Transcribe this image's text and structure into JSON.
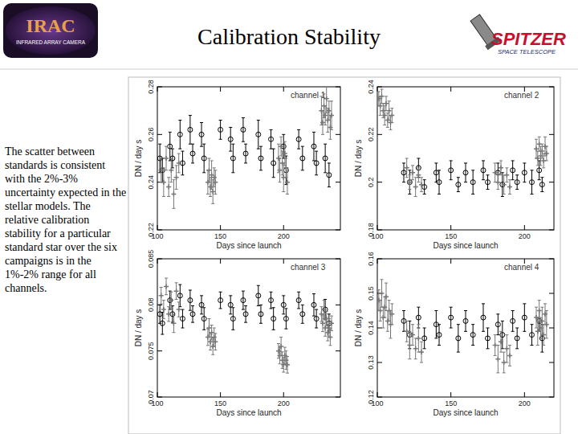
{
  "header": {
    "title": "Calibration Stability",
    "logo_left": {
      "text": "IRAC",
      "subtext": "INFRARED ARRAY CAMERA"
    },
    "logo_right": {
      "text": "SPITZER",
      "subtext": "SPACE TELESCOPE"
    }
  },
  "caption": "The scatter between standards is consistent with the 2%-3% uncertainty expected in the stellar models. The relative calibration stability for a particular standard star over the six campaigns is in the 1%-2% range for all channels.",
  "chart_data": [
    {
      "type": "scatter",
      "title": "channel 1",
      "x_label": "Days since launch",
      "y_label": "DN / day s",
      "xlim": [
        100,
        245
      ],
      "xticks": [
        100,
        150,
        200
      ],
      "ylim": [
        0.22,
        0.28
      ],
      "yticks": [
        0.22,
        0.24,
        0.26,
        0.28
      ],
      "series": [
        {
          "color": "#000000",
          "marker": "circle",
          "x": [
            102,
            104,
            110,
            112,
            118,
            120,
            126,
            128,
            135,
            137,
            150,
            158,
            160,
            168,
            170,
            180,
            182,
            190,
            192,
            200,
            202,
            212,
            215,
            224,
            226,
            233,
            236
          ],
          "values": [
            0.25,
            0.245,
            0.255,
            0.25,
            0.26,
            0.248,
            0.262,
            0.252,
            0.26,
            0.25,
            0.262,
            0.258,
            0.25,
            0.262,
            0.252,
            0.26,
            0.25,
            0.258,
            0.248,
            0.255,
            0.245,
            0.258,
            0.25,
            0.255,
            0.248,
            0.25,
            0.243
          ],
          "errors": [
            0.006,
            0.005,
            0.006,
            0.004,
            0.006,
            0.005,
            0.006,
            0.004,
            0.005,
            0.006,
            0.004,
            0.005,
            0.006,
            0.005,
            0.004,
            0.006,
            0.005,
            0.004,
            0.006,
            0.005,
            0.006,
            0.004,
            0.005,
            0.006,
            0.005,
            0.006,
            0.005
          ]
        },
        {
          "color": "#777777",
          "marker": "plus",
          "x": [
            103,
            105,
            107,
            109,
            111,
            113,
            115,
            117,
            140,
            141,
            142,
            143,
            144,
            145,
            146,
            196,
            197,
            198,
            199,
            200,
            201,
            202,
            203,
            230,
            231,
            232,
            233,
            234,
            235,
            236,
            237,
            238
          ],
          "values": [
            0.245,
            0.24,
            0.25,
            0.238,
            0.245,
            0.235,
            0.242,
            0.248,
            0.24,
            0.245,
            0.238,
            0.243,
            0.236,
            0.242,
            0.24,
            0.25,
            0.245,
            0.255,
            0.248,
            0.242,
            0.252,
            0.246,
            0.24,
            0.27,
            0.265,
            0.272,
            0.268,
            0.275,
            0.266,
            0.27,
            0.263,
            0.268
          ],
          "errors": [
            0.005,
            0.006,
            0.005,
            0.004,
            0.005,
            0.006,
            0.005,
            0.004,
            0.005,
            0.005,
            0.004,
            0.006,
            0.005,
            0.004,
            0.005,
            0.006,
            0.005,
            0.004,
            0.005,
            0.006,
            0.005,
            0.004,
            0.005,
            0.006,
            0.005,
            0.005,
            0.004,
            0.006,
            0.005,
            0.004,
            0.005,
            0.006
          ]
        }
      ]
    },
    {
      "type": "scatter",
      "title": "channel 2",
      "x_label": "Days since launch",
      "y_label": "DN / day s",
      "xlim": [
        100,
        220
      ],
      "xticks": [
        100,
        150,
        200
      ],
      "ylim": [
        0.18,
        0.24
      ],
      "yticks": [
        0.18,
        0.2,
        0.22,
        0.24
      ],
      "series": [
        {
          "color": "#000000",
          "marker": "circle",
          "x": [
            118,
            122,
            128,
            132,
            140,
            142,
            150,
            155,
            160,
            165,
            172,
            175,
            182,
            185,
            192,
            195,
            200,
            205,
            210,
            212
          ],
          "values": [
            0.204,
            0.2,
            0.206,
            0.198,
            0.204,
            0.2,
            0.205,
            0.199,
            0.204,
            0.2,
            0.205,
            0.2,
            0.204,
            0.199,
            0.205,
            0.2,
            0.204,
            0.2,
            0.205,
            0.199
          ],
          "errors": [
            0.004,
            0.005,
            0.004,
            0.003,
            0.004,
            0.005,
            0.004,
            0.003,
            0.004,
            0.005,
            0.004,
            0.003,
            0.004,
            0.005,
            0.004,
            0.003,
            0.004,
            0.005,
            0.004,
            0.003
          ]
        },
        {
          "color": "#777777",
          "marker": "plus",
          "x": [
            101,
            102,
            103,
            104,
            105,
            106,
            107,
            108,
            109,
            110,
            120,
            122,
            124,
            126,
            128,
            130,
            180,
            182,
            184,
            186,
            188,
            190,
            208,
            209,
            210,
            211,
            212,
            213,
            214,
            215
          ],
          "values": [
            0.235,
            0.232,
            0.236,
            0.23,
            0.228,
            0.233,
            0.226,
            0.23,
            0.225,
            0.228,
            0.206,
            0.2,
            0.204,
            0.198,
            0.203,
            0.199,
            0.204,
            0.2,
            0.206,
            0.199,
            0.203,
            0.198,
            0.214,
            0.21,
            0.216,
            0.211,
            0.213,
            0.209,
            0.215,
            0.212
          ],
          "errors": [
            0.003,
            0.004,
            0.003,
            0.003,
            0.004,
            0.003,
            0.003,
            0.004,
            0.003,
            0.003,
            0.004,
            0.003,
            0.003,
            0.004,
            0.003,
            0.003,
            0.004,
            0.003,
            0.003,
            0.004,
            0.003,
            0.003,
            0.004,
            0.003,
            0.003,
            0.004,
            0.003,
            0.003,
            0.004,
            0.003
          ]
        }
      ]
    },
    {
      "type": "scatter",
      "title": "channel 3",
      "x_label": "Days since launch",
      "y_label": "DN / day s",
      "xlim": [
        100,
        245
      ],
      "xticks": [
        100,
        150,
        200
      ],
      "ylim": [
        0.07,
        0.085
      ],
      "yticks": [
        0.07,
        0.075,
        0.08,
        0.085
      ],
      "series": [
        {
          "color": "#000000",
          "marker": "circle",
          "x": [
            102,
            104,
            110,
            112,
            118,
            120,
            126,
            128,
            135,
            137,
            150,
            158,
            160,
            168,
            170,
            180,
            182,
            190,
            192,
            200,
            202,
            212,
            215,
            224,
            226,
            233,
            236
          ],
          "values": [
            0.079,
            0.078,
            0.0805,
            0.079,
            0.081,
            0.0785,
            0.0805,
            0.079,
            0.08,
            0.0785,
            0.0805,
            0.08,
            0.0785,
            0.0805,
            0.079,
            0.081,
            0.079,
            0.0805,
            0.0785,
            0.08,
            0.0785,
            0.0805,
            0.079,
            0.08,
            0.0785,
            0.0795,
            0.078
          ],
          "errors": [
            0.001,
            0.0012,
            0.001,
            0.0009,
            0.0012,
            0.001,
            0.0011,
            0.0009,
            0.001,
            0.0012,
            0.0009,
            0.001,
            0.0012,
            0.001,
            0.0009,
            0.0011,
            0.001,
            0.0009,
            0.0012,
            0.001,
            0.0011,
            0.0009,
            0.001,
            0.0012,
            0.001,
            0.0011,
            0.001
          ]
        },
        {
          "color": "#777777",
          "marker": "plus",
          "x": [
            103,
            105,
            107,
            109,
            111,
            113,
            115,
            117,
            140,
            141,
            142,
            143,
            144,
            145,
            146,
            196,
            197,
            198,
            199,
            200,
            201,
            202,
            203,
            230,
            231,
            232,
            233,
            234,
            235,
            236,
            237,
            238
          ],
          "values": [
            0.081,
            0.0795,
            0.082,
            0.079,
            0.0805,
            0.078,
            0.0815,
            0.0795,
            0.0765,
            0.0775,
            0.076,
            0.077,
            0.0755,
            0.0765,
            0.076,
            0.075,
            0.0745,
            0.0755,
            0.074,
            0.0735,
            0.0745,
            0.074,
            0.0735,
            0.079,
            0.078,
            0.0795,
            0.0775,
            0.0785,
            0.077,
            0.0775,
            0.0765,
            0.078
          ],
          "errors": [
            0.0009,
            0.001,
            0.0009,
            0.0008,
            0.0009,
            0.001,
            0.0009,
            0.0008,
            0.0009,
            0.001,
            0.0009,
            0.0008,
            0.0009,
            0.001,
            0.0009,
            0.0008,
            0.0009,
            0.001,
            0.0009,
            0.0008,
            0.0009,
            0.001,
            0.0009,
            0.0008,
            0.0009,
            0.001,
            0.0009,
            0.0008,
            0.0009,
            0.001,
            0.0009,
            0.0008
          ]
        }
      ]
    },
    {
      "type": "scatter",
      "title": "channel 4",
      "x_label": "Days since launch",
      "y_label": "DN / day s",
      "xlim": [
        100,
        220
      ],
      "xticks": [
        100,
        150,
        200
      ],
      "ylim": [
        0.12,
        0.16
      ],
      "yticks": [
        0.12,
        0.13,
        0.14,
        0.15,
        0.16
      ],
      "series": [
        {
          "color": "#000000",
          "marker": "circle",
          "x": [
            118,
            122,
            128,
            132,
            140,
            142,
            150,
            155,
            160,
            165,
            172,
            175,
            182,
            185,
            192,
            195,
            200,
            205,
            210,
            212
          ],
          "values": [
            0.142,
            0.138,
            0.143,
            0.137,
            0.141,
            0.138,
            0.143,
            0.137,
            0.142,
            0.138,
            0.143,
            0.137,
            0.141,
            0.138,
            0.142,
            0.137,
            0.143,
            0.138,
            0.142,
            0.137
          ],
          "errors": [
            0.003,
            0.004,
            0.003,
            0.003,
            0.004,
            0.003,
            0.003,
            0.004,
            0.003,
            0.003,
            0.004,
            0.003,
            0.003,
            0.004,
            0.003,
            0.003,
            0.004,
            0.003,
            0.003,
            0.004
          ]
        },
        {
          "color": "#777777",
          "marker": "plus",
          "x": [
            101,
            102,
            103,
            104,
            105,
            106,
            107,
            108,
            109,
            110,
            120,
            122,
            124,
            126,
            128,
            130,
            180,
            182,
            184,
            186,
            188,
            190,
            208,
            209,
            210,
            211,
            212,
            213,
            214,
            215
          ],
          "values": [
            0.148,
            0.145,
            0.15,
            0.143,
            0.146,
            0.149,
            0.142,
            0.145,
            0.141,
            0.144,
            0.139,
            0.135,
            0.138,
            0.134,
            0.137,
            0.133,
            0.135,
            0.131,
            0.136,
            0.13,
            0.134,
            0.132,
            0.143,
            0.139,
            0.145,
            0.14,
            0.142,
            0.138,
            0.144,
            0.141
          ],
          "errors": [
            0.003,
            0.003,
            0.004,
            0.003,
            0.003,
            0.004,
            0.003,
            0.003,
            0.004,
            0.003,
            0.003,
            0.004,
            0.003,
            0.003,
            0.004,
            0.003,
            0.003,
            0.004,
            0.003,
            0.003,
            0.004,
            0.003,
            0.003,
            0.004,
            0.003,
            0.003,
            0.004,
            0.003,
            0.003,
            0.004
          ]
        }
      ]
    }
  ]
}
